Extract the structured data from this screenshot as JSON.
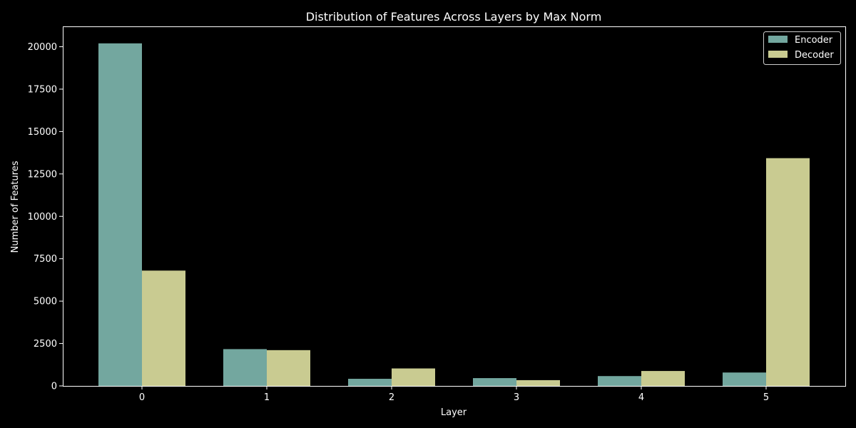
{
  "chart_data": {
    "type": "bar",
    "title": "Distribution of Features Across Layers by Max Norm",
    "xlabel": "Layer",
    "ylabel": "Number of Features",
    "categories": [
      "0",
      "1",
      "2",
      "3",
      "4",
      "5"
    ],
    "series": [
      {
        "name": "Encoder",
        "color": "#73a79f",
        "values": [
          20200,
          2170,
          420,
          460,
          580,
          790
        ]
      },
      {
        "name": "Decoder",
        "color": "#c9cb91",
        "values": [
          6800,
          2110,
          1030,
          340,
          880,
          13430
        ]
      }
    ],
    "ylim": [
      0,
      21200
    ],
    "yticks": [
      0,
      2500,
      5000,
      7500,
      10000,
      12500,
      15000,
      17500,
      20000
    ],
    "ytick_labels": [
      "0",
      "2500",
      "5000",
      "7500",
      "10000",
      "12500",
      "15000",
      "17500",
      "20000"
    ],
    "legend": "top-right",
    "grid": false,
    "background": "#000000",
    "axis_color": "#ffffff"
  }
}
